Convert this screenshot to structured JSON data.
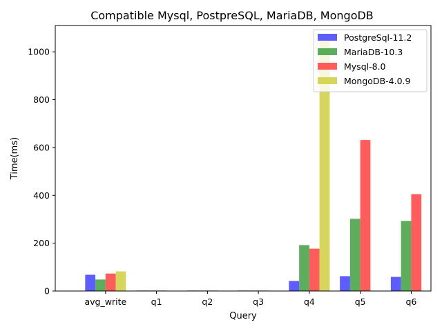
{
  "chart_data": {
    "type": "bar",
    "title": "Compatible Mysql, PostpreSQL, MariaDB, MongoDB",
    "xlabel": "Query",
    "ylabel": "Time(ms)",
    "categories": [
      "avg_write",
      "q1",
      "q2",
      "q3",
      "q4",
      "q5",
      "q6"
    ],
    "ylim": [
      0,
      1110
    ],
    "yticks": [
      0,
      200,
      400,
      600,
      800,
      1000
    ],
    "grid": false,
    "legend_position": "top-right",
    "series": [
      {
        "name": "PostgreSql-11.2",
        "color": "#3333ff",
        "values": [
          68,
          2,
          2,
          2,
          42,
          62,
          59
        ]
      },
      {
        "name": "MariaDB-10.3",
        "color": "#339933",
        "values": [
          48,
          2,
          2,
          2,
          192,
          302,
          293
        ]
      },
      {
        "name": "Mysql-8.0",
        "color": "#ff3333",
        "values": [
          73,
          2,
          2,
          2,
          177,
          631,
          405
        ]
      },
      {
        "name": "MongoDB-4.0.9",
        "color": "#cccc33",
        "values": [
          82,
          0,
          0,
          0,
          1055,
          0,
          0
        ]
      }
    ]
  }
}
